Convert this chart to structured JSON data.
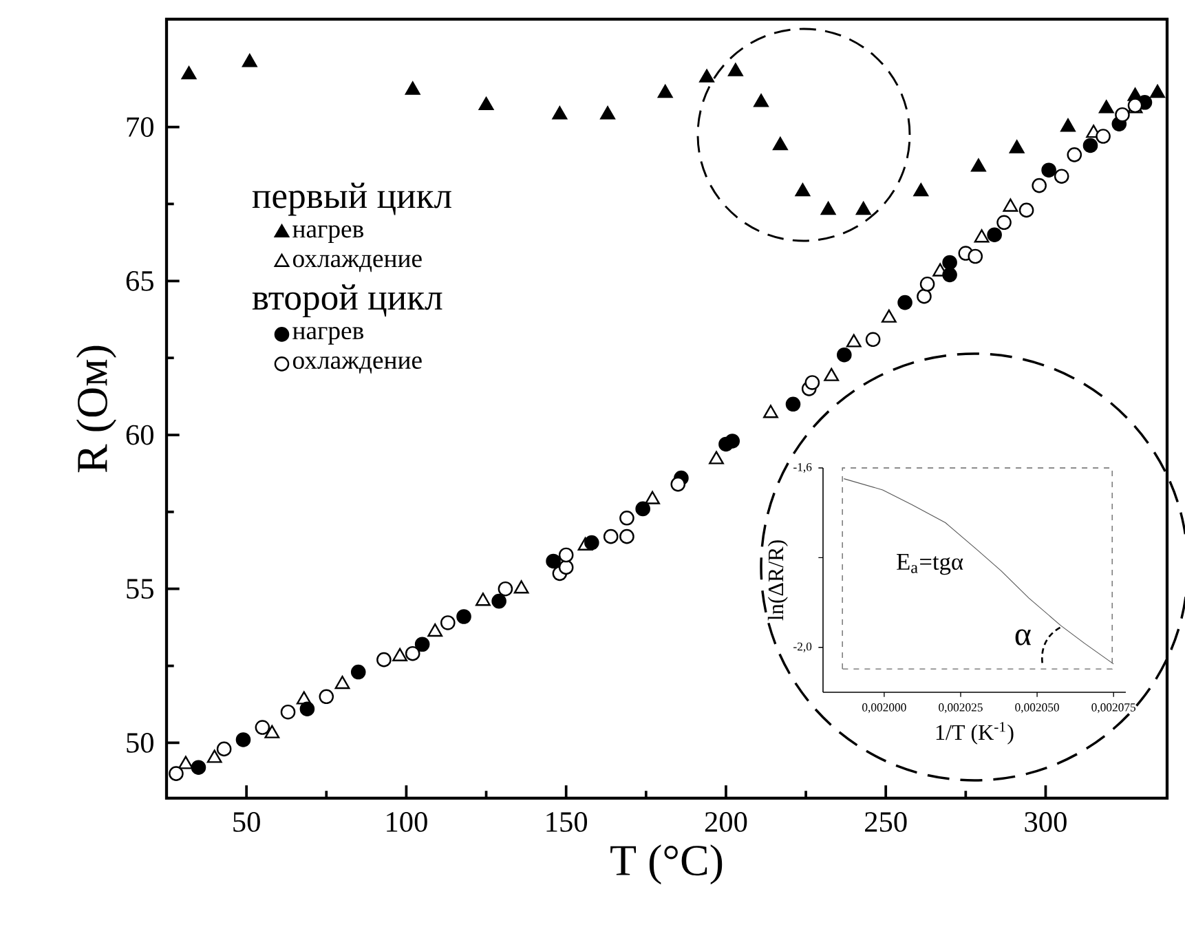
{
  "chart_data": [
    {
      "type": "scatter",
      "xlabel": "T (°C)",
      "ylabel": "R (Ом)",
      "xlim": [
        25,
        338
      ],
      "ylim": [
        48.2,
        73.5
      ],
      "xticks": [
        50,
        100,
        150,
        200,
        250,
        300
      ],
      "yticks": [
        50,
        55,
        60,
        65,
        70
      ],
      "legend": "left",
      "annotations": [
        "первый цикл",
        "второй цикл"
      ],
      "series": [
        {
          "name": "нагрев",
          "color": "#000000",
          "marker": "triangle",
          "x": [
            32,
            51,
            102,
            125,
            148,
            163,
            181,
            194,
            203,
            211,
            217,
            224,
            232,
            243,
            261,
            279,
            291,
            307,
            319,
            328,
            335
          ],
          "values": [
            71.7,
            72.1,
            71.2,
            70.7,
            70.4,
            70.4,
            71.1,
            71.6,
            71.8,
            70.8,
            69.4,
            67.9,
            67.3,
            67.3,
            67.9,
            68.7,
            69.3,
            70.0,
            70.6,
            71.0,
            71.1
          ]
        },
        {
          "name": "охлаждение",
          "color": "#000000",
          "marker": "triangle",
          "x": [
            31,
            40,
            58,
            68,
            80,
            98,
            109,
            124,
            136,
            156,
            177,
            197,
            214,
            233,
            240,
            251,
            267,
            280,
            289,
            315,
            328
          ],
          "values": [
            49.3,
            49.5,
            50.3,
            51.4,
            51.9,
            52.8,
            53.6,
            54.6,
            55.0,
            56.4,
            57.9,
            59.2,
            60.7,
            61.9,
            63.0,
            63.8,
            65.3,
            66.4,
            67.4,
            69.8,
            70.6
          ]
        },
        {
          "name": "нагрев",
          "color": "#000000",
          "marker": "circle",
          "x": [
            35,
            49,
            69,
            85,
            105,
            118,
            129,
            146,
            158,
            174,
            186,
            200,
            202,
            221,
            237,
            256,
            270,
            270,
            284,
            301,
            314,
            323,
            331
          ],
          "values": [
            49.2,
            50.1,
            51.1,
            52.3,
            53.2,
            54.1,
            54.6,
            55.9,
            56.5,
            57.6,
            58.6,
            59.7,
            59.8,
            61.0,
            62.6,
            64.3,
            65.6,
            65.2,
            66.5,
            68.6,
            69.4,
            70.1,
            70.8
          ]
        },
        {
          "name": "охлаждение",
          "color": "#000000",
          "marker": "circle",
          "x": [
            28,
            43,
            55,
            63,
            75,
            93,
            102,
            113,
            131,
            148,
            150,
            150,
            164,
            169,
            169,
            185,
            226,
            227,
            246,
            262,
            263,
            275,
            278,
            287,
            294,
            298,
            305,
            309,
            318,
            324,
            328
          ],
          "values": [
            49.0,
            49.8,
            50.5,
            51.0,
            51.5,
            52.7,
            52.9,
            53.9,
            55.0,
            55.5,
            55.7,
            56.1,
            56.7,
            57.3,
            56.7,
            58.4,
            61.5,
            61.7,
            63.1,
            64.5,
            64.9,
            65.9,
            65.8,
            66.9,
            67.3,
            68.1,
            68.4,
            69.1,
            69.7,
            70.4,
            70.7
          ]
        }
      ]
    },
    {
      "type": "line",
      "xlabel": "1/T (K$^{-1}$)",
      "ylabel": "ln(ΔR/R)",
      "xlim": [
        0.00198,
        0.002079
      ],
      "ylim": [
        -2.1,
        -1.6
      ],
      "xticks": [
        {
          "value": 0.002,
          "label": "0,002000"
        },
        {
          "value": 0.002025,
          "label": "0,002025"
        },
        {
          "value": 0.00205,
          "label": "0,002050"
        },
        {
          "value": 0.002075,
          "label": "0,002075"
        }
      ],
      "yticks": [
        {
          "value": -1.6,
          "label": "-1,6"
        },
        {
          "value": -1.8,
          "label": null
        },
        {
          "value": -2.0,
          "label": "-2,0"
        }
      ],
      "annotations": [
        "E$_{a}$=tgα",
        "α"
      ],
      "series": [
        {
          "color": "#555555",
          "x": [
            0.0019868,
            0.0019995,
            0.0020091,
            0.00202,
            0.0020305,
            0.0020382,
            0.0020473,
            0.0020577,
            0.0020655,
            0.002075
          ],
          "values": [
            -1.624,
            -1.649,
            -1.682,
            -1.722,
            -1.783,
            -1.829,
            -1.89,
            -1.951,
            -1.991,
            -2.037
          ]
        }
      ]
    }
  ]
}
